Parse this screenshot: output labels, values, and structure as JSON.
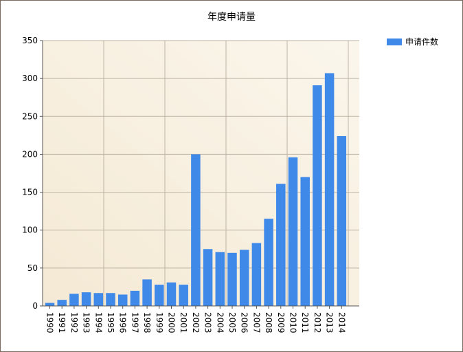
{
  "colors": {
    "bar": "#3f89e9",
    "plot_bg_left": "#f4e9d4",
    "plot_bg_right": "#fbf6ec",
    "grid": "#bdb3a4",
    "axis": "#555555"
  },
  "chart_data": {
    "type": "bar",
    "title": "年度申请量",
    "xlabel": "",
    "ylabel": "",
    "ylim": [
      0,
      350
    ],
    "yticks": [
      0,
      50,
      100,
      150,
      200,
      250,
      300,
      350
    ],
    "grid": true,
    "legend_position": "top-right",
    "categories": [
      "1990",
      "1991",
      "1992",
      "1993",
      "1994",
      "1995",
      "1996",
      "1997",
      "1998",
      "1999",
      "2000",
      "2001",
      "2002",
      "2003",
      "2004",
      "2005",
      "2006",
      "2007",
      "2008",
      "2009",
      "2010",
      "2011",
      "2012",
      "2013",
      "2014"
    ],
    "series": [
      {
        "name": "申请件数",
        "values": [
          4,
          8,
          16,
          18,
          17,
          17,
          15,
          20,
          35,
          28,
          31,
          28,
          200,
          75,
          71,
          70,
          74,
          83,
          115,
          161,
          196,
          170,
          291,
          307,
          224
        ]
      }
    ]
  }
}
